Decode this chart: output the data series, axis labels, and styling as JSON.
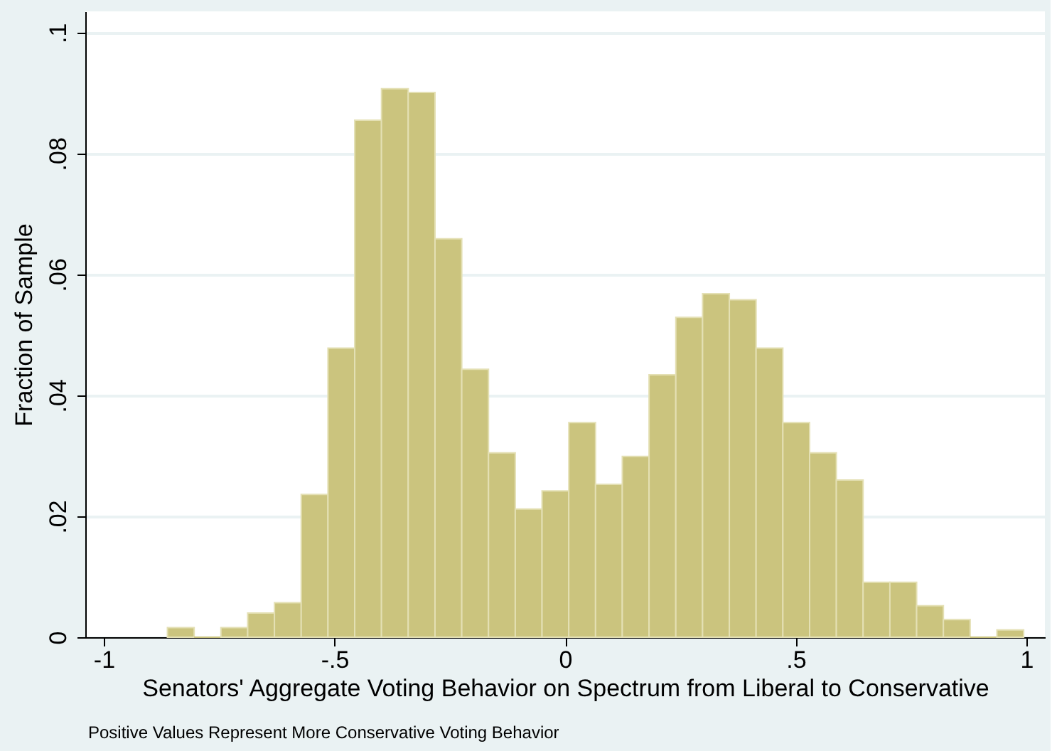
{
  "chart_data": {
    "type": "histogram",
    "xlabel": "Senators' Aggregate Voting Behavior on Spectrum from Liberal to Conservative",
    "ylabel": "Fraction of Sample",
    "annotations": [
      "Positive Values Represent More Conservative Voting Behavior"
    ],
    "bins": [
      -0.862,
      -0.804,
      -0.746,
      -0.688,
      -0.63,
      -0.572,
      -0.514,
      -0.456,
      -0.398,
      -0.34,
      -0.282,
      -0.224,
      -0.166,
      -0.108,
      -0.05,
      0.008,
      0.066,
      0.124,
      0.182,
      0.24,
      0.298,
      0.356,
      0.414,
      0.472,
      0.53,
      0.588,
      0.646,
      0.704,
      0.762,
      0.82,
      0.878,
      0.936,
      0.994
    ],
    "values": [
      0.0016,
      0,
      0.0016,
      0.004,
      0.0057,
      0.0236,
      0.0478,
      0.0855,
      0.0907,
      0.0901,
      0.0659,
      0.0443,
      0.0305,
      0.0212,
      0.0242,
      0.0355,
      0.0253,
      0.0299,
      0.0434,
      0.0529,
      0.0568,
      0.0558,
      0.0478,
      0.0355,
      0.0305,
      0.026,
      0.0091,
      0.0091,
      0.0052,
      0.0029,
      0,
      0.0012
    ],
    "color": "#cbc47e",
    "xlim": [
      -1.04,
      1.04
    ],
    "xticks": [
      -1,
      {
        "value": -0.5,
        "label": "-.5"
      },
      0,
      {
        "value": 0.5,
        "label": ".5"
      },
      1
    ],
    "ylim": [
      0,
      0.1035
    ],
    "yticks": [
      0,
      {
        "value": 0.02,
        "label": ".02"
      },
      {
        "value": 0.04,
        "label": ".04"
      },
      {
        "value": 0.06,
        "label": ".06"
      },
      {
        "value": 0.08,
        "label": ".08"
      },
      {
        "value": 0.1,
        "label": ".1"
      }
    ],
    "grid": "y"
  }
}
